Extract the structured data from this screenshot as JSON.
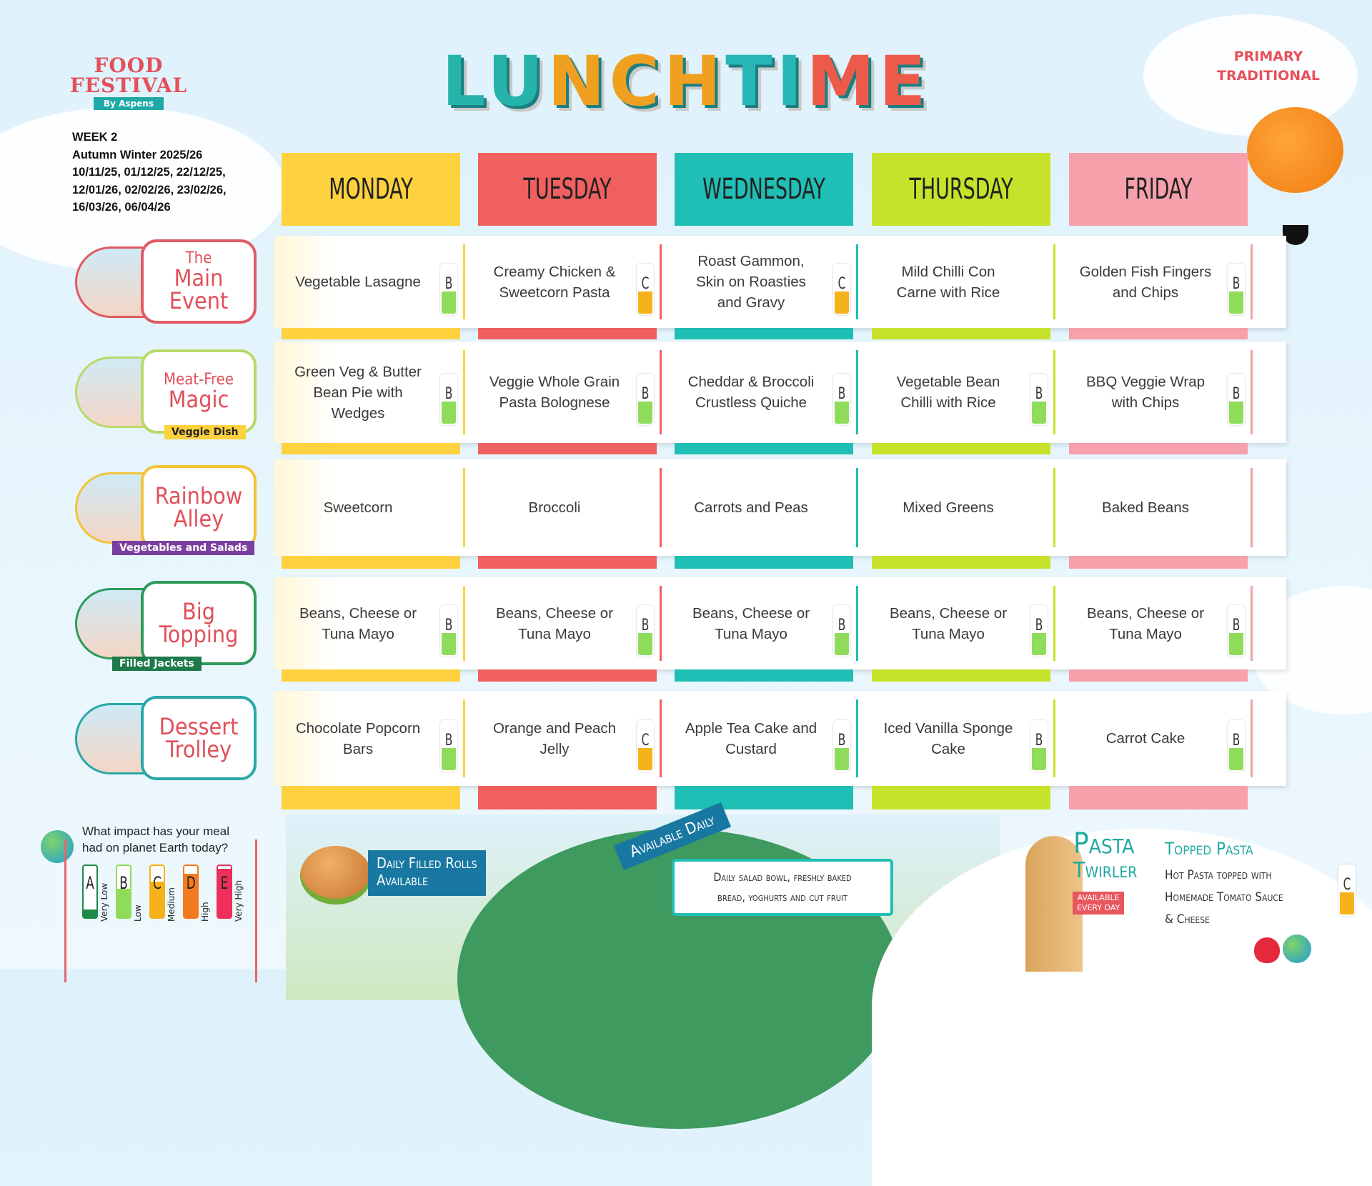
{
  "logo": {
    "line1": "FOOD",
    "line2": "FESTIVAL",
    "ribbon": "By Aspens"
  },
  "week": {
    "label": "WEEK 2",
    "season": "Autumn Winter 2025/26",
    "dates": [
      "10/11/25, 01/12/25, 22/12/25,",
      "12/01/26, 02/02/26, 23/02/26,",
      "16/03/26, 06/04/26"
    ]
  },
  "title": "LUNCHTIME",
  "menu_type": [
    "PRIMARY",
    "TRADITIONAL"
  ],
  "days": [
    {
      "name": "MONDAY",
      "color": "#fdd23e"
    },
    {
      "name": "TUESDAY",
      "color": "#f0605e"
    },
    {
      "name": "WEDNESDAY",
      "color": "#1fbfb5"
    },
    {
      "name": "THURSDAY",
      "color": "#c7e22a"
    },
    {
      "name": "FRIDAY",
      "color": "#f5a0aa"
    }
  ],
  "rows": [
    {
      "small": "The",
      "title": "Main Event",
      "tag": "",
      "color": "#e05a63",
      "cells": [
        {
          "dish": "Vegetable Lasagne",
          "grade": "B"
        },
        {
          "dish": "Creamy Chicken & Sweetcorn Pasta",
          "grade": "C"
        },
        {
          "dish": "Roast Gammon, Skin on Roasties and Gravy",
          "grade": "C"
        },
        {
          "dish": "Mild Chilli Con Carne with Rice",
          "grade": ""
        },
        {
          "dish": "Golden Fish Fingers and Chips",
          "grade": "B"
        }
      ]
    },
    {
      "small": "Meat-Free",
      "title": "Magic",
      "tag": "Veggie Dish",
      "tagcolor": "#fdd23e",
      "color": "#b9d96a",
      "cells": [
        {
          "dish": "Green Veg & Butter Bean Pie with Wedges",
          "grade": "B"
        },
        {
          "dish": "Veggie Whole Grain Pasta Bolognese",
          "grade": "B"
        },
        {
          "dish": "Cheddar & Broccoli Crustless Quiche",
          "grade": "B"
        },
        {
          "dish": "Vegetable Bean Chilli with Rice",
          "grade": "B"
        },
        {
          "dish": "BBQ Veggie Wrap with Chips",
          "grade": "B"
        }
      ]
    },
    {
      "small": "",
      "title": "Rainbow Alley",
      "tag": "Vegetables and Salads",
      "tagcolor": "#7b3fa0",
      "color": "#f3c33a",
      "cells": [
        {
          "dish": "Sweetcorn",
          "grade": ""
        },
        {
          "dish": "Broccoli",
          "grade": ""
        },
        {
          "dish": "Carrots and Peas",
          "grade": ""
        },
        {
          "dish": "Mixed Greens",
          "grade": ""
        },
        {
          "dish": "Baked Beans",
          "grade": ""
        }
      ]
    },
    {
      "small": "",
      "title": "Big Topping",
      "tag": "Filled Jackets",
      "tagcolor": "#1e7a4a",
      "color": "#2e9a5a",
      "cells": [
        {
          "dish": "Beans, Cheese or Tuna Mayo",
          "grade": "B"
        },
        {
          "dish": "Beans, Cheese or Tuna Mayo",
          "grade": "B"
        },
        {
          "dish": "Beans, Cheese or Tuna Mayo",
          "grade": "B"
        },
        {
          "dish": "Beans, Cheese or Tuna Mayo",
          "grade": "B"
        },
        {
          "dish": "Beans, Cheese or Tuna Mayo",
          "grade": "B"
        }
      ]
    },
    {
      "small": "",
      "title": "Dessert Trolley",
      "tag": "",
      "color": "#29a8a8",
      "cells": [
        {
          "dish": "Chocolate Popcorn Bars",
          "grade": "B"
        },
        {
          "dish": "Orange and Peach Jelly",
          "grade": "C"
        },
        {
          "dish": "Apple Tea Cake and Custard",
          "grade": "B"
        },
        {
          "dish": "Iced Vanilla Sponge Cake",
          "grade": "B"
        },
        {
          "dish": "Carrot Cake",
          "grade": "B"
        }
      ]
    }
  ],
  "grade_colors": {
    "A": "#1e8a4a",
    "B": "#8fdc5a",
    "C": "#f6b21a",
    "D": "#f47a20",
    "E": "#ee2f5a"
  },
  "legend": {
    "question": [
      "What impact has your meal",
      "had on planet Earth today?"
    ],
    "levels": [
      {
        "grade": "A",
        "label": "Very Low"
      },
      {
        "grade": "B",
        "label": "Low"
      },
      {
        "grade": "C",
        "label": "Medium"
      },
      {
        "grade": "D",
        "label": "High"
      },
      {
        "grade": "E",
        "label": "Very High"
      }
    ]
  },
  "rolls": {
    "line1": "Daily Filled Rolls",
    "line2": "Available"
  },
  "daily": {
    "banner": "Available Daily",
    "line1": "Daily salad bowl, freshly baked",
    "line2": "bread, yoghurts and cut fruit"
  },
  "pasta": {
    "logo1": "Pasta",
    "logo2": "Twirler",
    "badge1": "AVAILABLE",
    "badge2": "EVERY DAY",
    "heading": "Topped Pasta",
    "desc": [
      "Hot Pasta topped with",
      "Homemade Tomato Sauce",
      "& Cheese"
    ],
    "grade": "C"
  }
}
